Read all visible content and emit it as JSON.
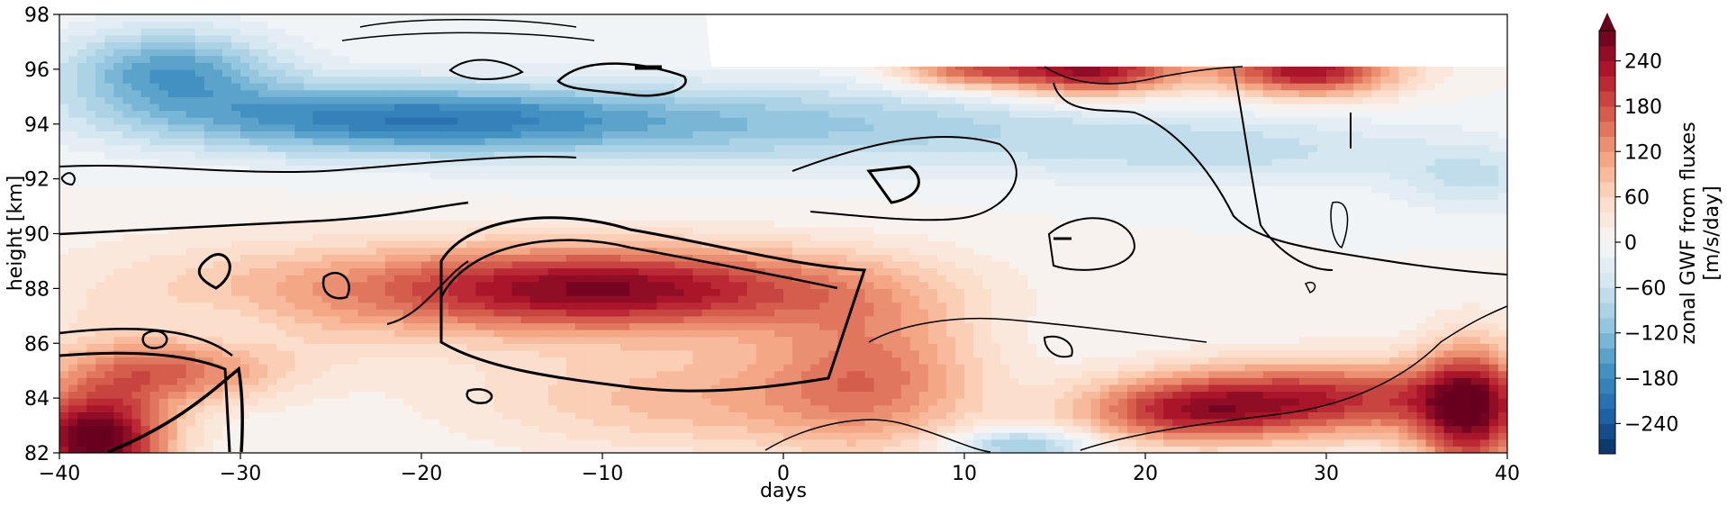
{
  "chart_data": {
    "type": "heatmap",
    "title": "",
    "xlabel": "days",
    "ylabel": "height [km]",
    "xlim": [
      -40,
      40
    ],
    "ylim": [
      82,
      98
    ],
    "x_ticks": [
      "−40",
      "−30",
      "−20",
      "−10",
      "0",
      "10",
      "20",
      "30",
      "40"
    ],
    "y_ticks": [
      "82",
      "84",
      "86",
      "88",
      "90",
      "92",
      "94",
      "96",
      "98"
    ],
    "colorbar": {
      "label_line1": "zonal GWF from fluxes",
      "label_line2": "[m/s/day]",
      "ticks": [
        "−240",
        "−180",
        "−120",
        "−60",
        "0",
        "60",
        "120",
        "180",
        "240"
      ],
      "tick_values": [
        -240,
        -180,
        -120,
        -60,
        0,
        60,
        120,
        180,
        240
      ],
      "range": [
        -280,
        280
      ],
      "extend": "max",
      "colormap": "RdBu_r"
    },
    "colormap_stops": [
      "#053061",
      "#2166ac",
      "#4393c3",
      "#92c5de",
      "#d1e5f0",
      "#f7f7f7",
      "#fddbc7",
      "#f4a582",
      "#d6604d",
      "#b2182b",
      "#67001f"
    ],
    "features": [
      {
        "description": "strong positive (westward-red) forcing band",
        "days": [
          -20,
          5
        ],
        "height": [
          86,
          90
        ],
        "peak_value": 270
      },
      {
        "description": "positive forcing corner",
        "days": [
          -40,
          -33
        ],
        "height": [
          82,
          85
        ],
        "peak_value": 300
      },
      {
        "description": "negative (blue) forcing band",
        "days": [
          -40,
          25
        ],
        "height": [
          92.5,
          96
        ],
        "peak_value": -180
      },
      {
        "description": "positive forcing near top",
        "days": [
          10,
          40
        ],
        "height": [
          95,
          96
        ],
        "peak_value": 260
      },
      {
        "description": "positive forcing lower right",
        "days": [
          15,
          40
        ],
        "height": [
          82.5,
          86
        ],
        "peak_value": 200
      },
      {
        "description": "no data region",
        "days": [
          -4,
          40
        ],
        "height": [
          96,
          98
        ]
      }
    ],
    "grid": false,
    "legend": "none"
  }
}
